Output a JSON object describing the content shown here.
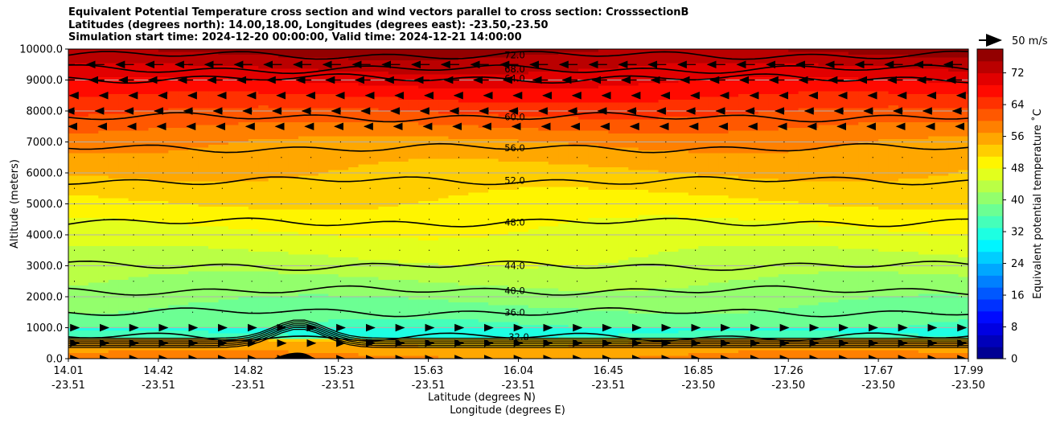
{
  "chart_data": {
    "type": "heatmap",
    "title_lines": [
      "Equivalent Potential Temperature cross section and wind vectors parallel to cross section: CrosssectionB",
      "Latitudes (degrees north): 14.00,18.00, Longitudes (degrees east): -23.50,-23.50",
      "Simulation start time: 2024-12-20 00:00:00, Valid time: 2024-12-21 14:00:00"
    ],
    "ylabel": "Altitude (meters)",
    "xlabel_lat": "Latitude (degrees N)",
    "xlabel_lon": "Longitude (degrees E)",
    "ylim": [
      0,
      10000
    ],
    "y_ticks": [
      "0.0",
      "1000.0",
      "2000.0",
      "3000.0",
      "4000.0",
      "5000.0",
      "6000.0",
      "7000.0",
      "8000.0",
      "9000.0",
      "10000.0"
    ],
    "x_ticks": [
      {
        "lat": "14.01",
        "lon": "-23.51"
      },
      {
        "lat": "14.42",
        "lon": "-23.51"
      },
      {
        "lat": "14.82",
        "lon": "-23.51"
      },
      {
        "lat": "15.23",
        "lon": "-23.51"
      },
      {
        "lat": "15.63",
        "lon": "-23.51"
      },
      {
        "lat": "16.04",
        "lon": "-23.51"
      },
      {
        "lat": "16.45",
        "lon": "-23.51"
      },
      {
        "lat": "16.85",
        "lon": "-23.50"
      },
      {
        "lat": "17.26",
        "lon": "-23.50"
      },
      {
        "lat": "17.67",
        "lon": "-23.50"
      },
      {
        "lat": "17.99",
        "lon": "-23.50"
      }
    ],
    "colorbar": {
      "label": "Equivalent potential temperature ˚C",
      "range": [
        0,
        78
      ],
      "ticks": [
        "0",
        "8",
        "16",
        "24",
        "32",
        "40",
        "48",
        "56",
        "64",
        "72"
      ]
    },
    "quiver_key": "50 m/s",
    "contour_labels": [
      "72.0",
      "68.0",
      "64.0",
      "60.0",
      "56.0",
      "52.0",
      "48.0",
      "44.0",
      "40.0",
      "36.0",
      "32.0"
    ],
    "grid": "horizontal"
  }
}
